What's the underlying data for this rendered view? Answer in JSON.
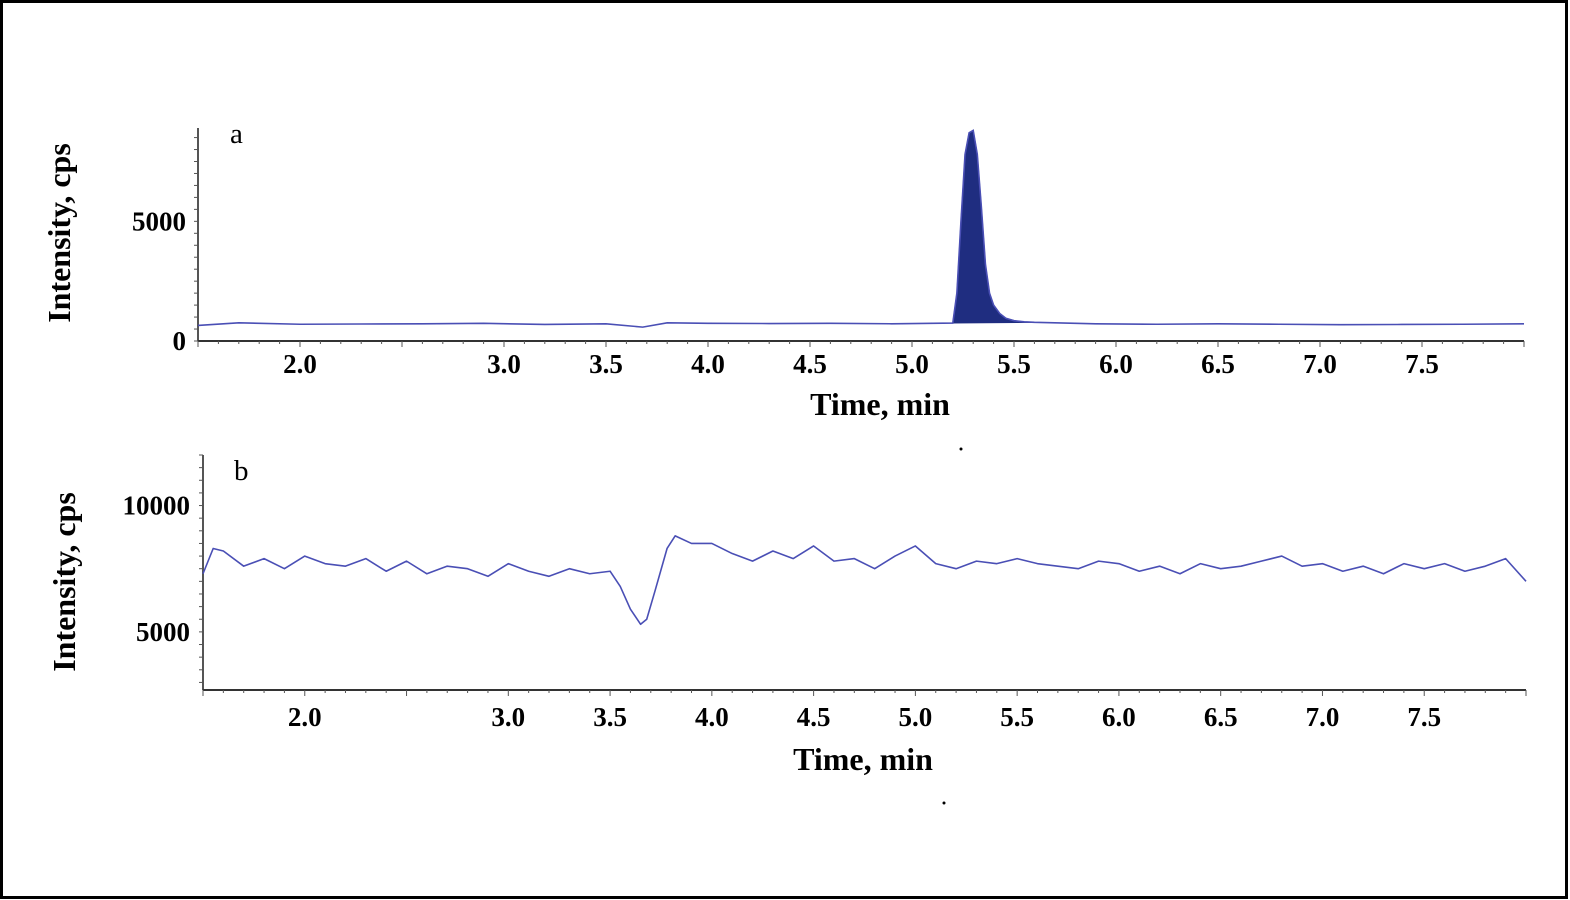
{
  "chart_data": [
    {
      "type": "area",
      "panel_label": "a",
      "xlabel": "Time, min",
      "ylabel": "Intensity, cps",
      "xlim": [
        1.5,
        8.0
      ],
      "ylim": [
        0,
        8900
      ],
      "x_ticks": [
        "2.0",
        "3.0",
        "3.5",
        "4.0",
        "4.5",
        "5.0",
        "5.5",
        "6.0",
        "6.5",
        "7.0",
        "7.5"
      ],
      "y_ticks": [
        "0",
        "5000"
      ],
      "y_tick_values": [
        0,
        5000
      ],
      "line_color": "#4a4fb5",
      "fill_color": "#1f2d80",
      "baseline": {
        "x": [
          1.5,
          1.7,
          2.0,
          2.3,
          2.6,
          2.9,
          3.2,
          3.5,
          3.68,
          3.8,
          4.0,
          4.3,
          4.6,
          4.9,
          5.1,
          5.2
        ],
        "y": [
          650,
          760,
          700,
          710,
          720,
          740,
          690,
          720,
          580,
          760,
          740,
          730,
          740,
          720,
          740,
          750
        ]
      },
      "peak": {
        "x": [
          5.2,
          5.22,
          5.24,
          5.26,
          5.28,
          5.3,
          5.32,
          5.34,
          5.36,
          5.38,
          5.4,
          5.43,
          5.46,
          5.5,
          5.55,
          5.6
        ],
        "y": [
          750,
          2000,
          5000,
          7800,
          8700,
          8800,
          7800,
          5600,
          3200,
          2000,
          1500,
          1150,
          950,
          850,
          800,
          780
        ]
      },
      "tail": {
        "x": [
          5.6,
          5.9,
          6.2,
          6.5,
          6.8,
          7.1,
          7.4,
          7.7,
          8.0
        ],
        "y": [
          780,
          720,
          700,
          720,
          700,
          680,
          690,
          700,
          720
        ]
      }
    },
    {
      "type": "line",
      "panel_label": "b",
      "xlabel": "Time, min",
      "ylabel": "Intensity, cps",
      "xlim": [
        1.5,
        8.0
      ],
      "ylim": [
        2700,
        12000
      ],
      "x_ticks": [
        "2.0",
        "3.0",
        "3.5",
        "4.0",
        "4.5",
        "5.0",
        "5.5",
        "6.0",
        "6.5",
        "7.0",
        "7.5"
      ],
      "y_ticks": [
        "5000",
        "10000"
      ],
      "y_tick_values": [
        5000,
        10000
      ],
      "line_color": "#4a4fb5",
      "x": [
        1.5,
        1.55,
        1.6,
        1.7,
        1.8,
        1.9,
        2.0,
        2.1,
        2.2,
        2.3,
        2.4,
        2.5,
        2.6,
        2.7,
        2.8,
        2.9,
        3.0,
        3.1,
        3.2,
        3.3,
        3.4,
        3.5,
        3.55,
        3.6,
        3.65,
        3.68,
        3.72,
        3.78,
        3.82,
        3.9,
        4.0,
        4.1,
        4.2,
        4.3,
        4.4,
        4.5,
        4.6,
        4.7,
        4.8,
        4.9,
        5.0,
        5.1,
        5.2,
        5.3,
        5.4,
        5.5,
        5.6,
        5.7,
        5.8,
        5.9,
        6.0,
        6.1,
        6.2,
        6.3,
        6.4,
        6.5,
        6.6,
        6.7,
        6.8,
        6.9,
        7.0,
        7.1,
        7.2,
        7.3,
        7.4,
        7.5,
        7.6,
        7.7,
        7.8,
        7.9,
        8.0
      ],
      "y": [
        7300,
        8300,
        8200,
        7600,
        7900,
        7500,
        8000,
        7700,
        7600,
        7900,
        7400,
        7800,
        7300,
        7600,
        7500,
        7200,
        7700,
        7400,
        7200,
        7500,
        7300,
        7400,
        6800,
        5900,
        5300,
        5500,
        6600,
        8300,
        8800,
        8500,
        8500,
        8100,
        7800,
        8200,
        7900,
        8400,
        7800,
        7900,
        7500,
        8000,
        8400,
        7700,
        7500,
        7800,
        7700,
        7900,
        7700,
        7600,
        7500,
        7800,
        7700,
        7400,
        7600,
        7300,
        7700,
        7500,
        7600,
        7800,
        8000,
        7600,
        7700,
        7400,
        7600,
        7300,
        7700,
        7500,
        7700,
        7400,
        7600,
        7900,
        7000
      ]
    }
  ]
}
